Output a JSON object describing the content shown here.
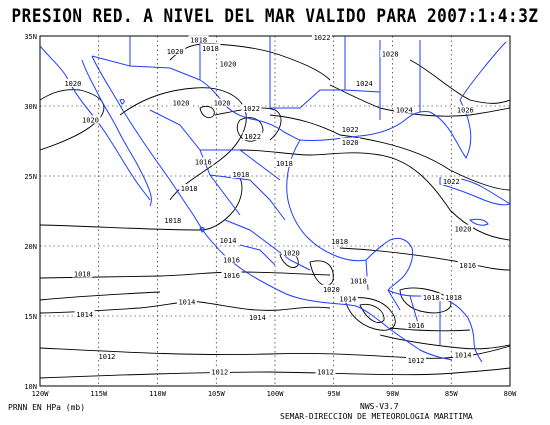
{
  "title": "PRESION RED. A NIVEL DEL MAR VALIDO PARA 2007:1:4:3Z",
  "footer": {
    "units": "PRNN EN HPa (mb)",
    "version": "NWS-V3.7",
    "agency": "SEMAR-DIRECCION DE METEOROLOGIA MARITIMA"
  },
  "axes": {
    "lat_ticks": [
      "35N",
      "30N",
      "25N",
      "20N",
      "15N",
      "10N"
    ],
    "lon_ticks": [
      "120W",
      "115W",
      "110W",
      "105W",
      "100W",
      "95W",
      "90W",
      "85W",
      "80W"
    ]
  },
  "colors": {
    "coast": "#1f3dff",
    "isobar": "#000000",
    "grid": "#000000"
  },
  "isobar_labels": [
    {
      "text": "1018",
      "lon": -106.5,
      "lat": 34.6
    },
    {
      "text": "1022",
      "lon": -96.0,
      "lat": 34.8
    },
    {
      "text": "1020",
      "lon": -108.5,
      "lat": 33.8
    },
    {
      "text": "1018",
      "lon": -105.5,
      "lat": 34.0
    },
    {
      "text": "1028",
      "lon": -90.2,
      "lat": 33.6
    },
    {
      "text": "1020",
      "lon": -104.0,
      "lat": 32.9
    },
    {
      "text": "1020",
      "lon": -117.2,
      "lat": 31.5
    },
    {
      "text": "1024",
      "lon": -92.4,
      "lat": 31.5
    },
    {
      "text": "1020",
      "lon": -108.0,
      "lat": 30.1
    },
    {
      "text": "1020",
      "lon": -104.5,
      "lat": 30.1
    },
    {
      "text": "1022",
      "lon": -102.0,
      "lat": 29.7
    },
    {
      "text": "1024",
      "lon": -89.0,
      "lat": 29.6
    },
    {
      "text": "1026",
      "lon": -83.8,
      "lat": 29.6
    },
    {
      "text": "1020",
      "lon": -115.7,
      "lat": 28.9
    },
    {
      "text": "1022",
      "lon": -93.6,
      "lat": 28.2
    },
    {
      "text": "1022",
      "lon": -101.9,
      "lat": 27.7
    },
    {
      "text": "1020",
      "lon": -93.6,
      "lat": 27.3
    },
    {
      "text": "1016",
      "lon": -106.1,
      "lat": 25.9
    },
    {
      "text": "1018",
      "lon": -99.2,
      "lat": 25.8
    },
    {
      "text": "1018",
      "lon": -102.9,
      "lat": 25.0
    },
    {
      "text": "1018",
      "lon": -107.3,
      "lat": 24.0
    },
    {
      "text": "1022",
      "lon": -85.0,
      "lat": 24.5
    },
    {
      "text": "1018",
      "lon": -108.7,
      "lat": 21.7
    },
    {
      "text": "1020",
      "lon": -84.0,
      "lat": 21.1
    },
    {
      "text": "1014",
      "lon": -104.0,
      "lat": 20.3
    },
    {
      "text": "1018",
      "lon": -94.5,
      "lat": 20.2
    },
    {
      "text": "1016",
      "lon": -103.7,
      "lat": 18.9
    },
    {
      "text": "1020",
      "lon": -98.6,
      "lat": 19.4
    },
    {
      "text": "1016",
      "lon": -83.6,
      "lat": 18.5
    },
    {
      "text": "1018",
      "lon": -116.4,
      "lat": 17.9
    },
    {
      "text": "1016",
      "lon": -103.7,
      "lat": 17.8
    },
    {
      "text": "1018",
      "lon": -92.9,
      "lat": 17.4
    },
    {
      "text": "1020",
      "lon": -95.2,
      "lat": 16.8
    },
    {
      "text": "1014",
      "lon": -93.8,
      "lat": 16.1
    },
    {
      "text": "1018",
      "lon": -86.7,
      "lat": 16.2
    },
    {
      "text": "1018",
      "lon": -84.8,
      "lat": 16.2
    },
    {
      "text": "1014",
      "lon": -107.5,
      "lat": 15.9
    },
    {
      "text": "1014",
      "lon": -116.2,
      "lat": 15.0
    },
    {
      "text": "1014",
      "lon": -101.5,
      "lat": 14.8
    },
    {
      "text": "1016",
      "lon": -88.0,
      "lat": 14.2
    },
    {
      "text": "1012",
      "lon": -114.3,
      "lat": 12.0
    },
    {
      "text": "1014",
      "lon": -84.0,
      "lat": 12.1
    },
    {
      "text": "1012",
      "lon": -88.0,
      "lat": 11.7
    },
    {
      "text": "1012",
      "lon": -104.7,
      "lat": 10.9
    },
    {
      "text": "1012",
      "lon": -95.7,
      "lat": 10.9
    }
  ]
}
